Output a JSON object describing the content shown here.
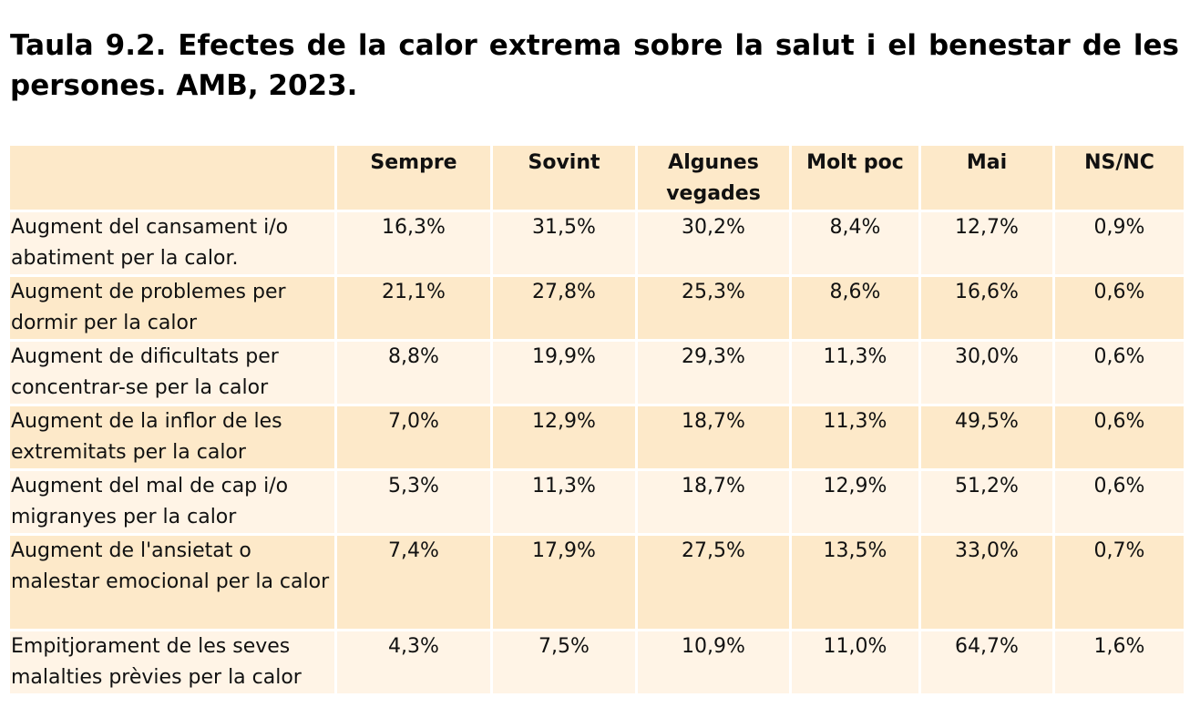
{
  "title": "Taula 9.2. Efectes de la calor extrema sobre la salut i el benestar de les persones. AMB, 2023.",
  "table": {
    "headers": [
      "",
      "Sempre",
      "Sovint",
      "Algunes vegades",
      "Molt poc",
      "Mai",
      "NS/NC"
    ],
    "rows": [
      {
        "label": "Augment del cansament i/o abatiment per la calor.",
        "values": [
          "16,3%",
          "31,5%",
          "30,2%",
          "8,4%",
          "12,7%",
          "0,9%"
        ]
      },
      {
        "label": "Augment de problemes per dormir per la calor",
        "values": [
          "21,1%",
          "27,8%",
          "25,3%",
          "8,6%",
          "16,6%",
          "0,6%"
        ]
      },
      {
        "label": "Augment de dificultats per concentrar-se per la calor",
        "values": [
          "8,8%",
          "19,9%",
          "29,3%",
          "11,3%",
          "30,0%",
          "0,6%"
        ]
      },
      {
        "label": "Augment de la inflor de les extremitats per la calor",
        "values": [
          "7,0%",
          "12,9%",
          "18,7%",
          "11,3%",
          "49,5%",
          "0,6%"
        ]
      },
      {
        "label": "Augment del mal de cap i/o migranyes per la calor",
        "values": [
          "5,3%",
          "11,3%",
          "18,7%",
          "12,9%",
          "51,2%",
          "0,6%"
        ]
      },
      {
        "label": "Augment de l'ansietat o malestar emocional per la calor",
        "values": [
          "7,4%",
          "17,9%",
          "27,5%",
          "13,5%",
          "33,0%",
          "0,7%"
        ]
      },
      {
        "label": "Empitjorament de les seves malalties prèvies per la calor",
        "values": [
          "4,3%",
          "7,5%",
          "10,9%",
          "11,0%",
          "64,7%",
          "1,6%"
        ]
      }
    ]
  },
  "colors": {
    "header_bg": "#fde9c9",
    "row_light": "#fff4e6",
    "row_dark": "#fde9c9"
  }
}
